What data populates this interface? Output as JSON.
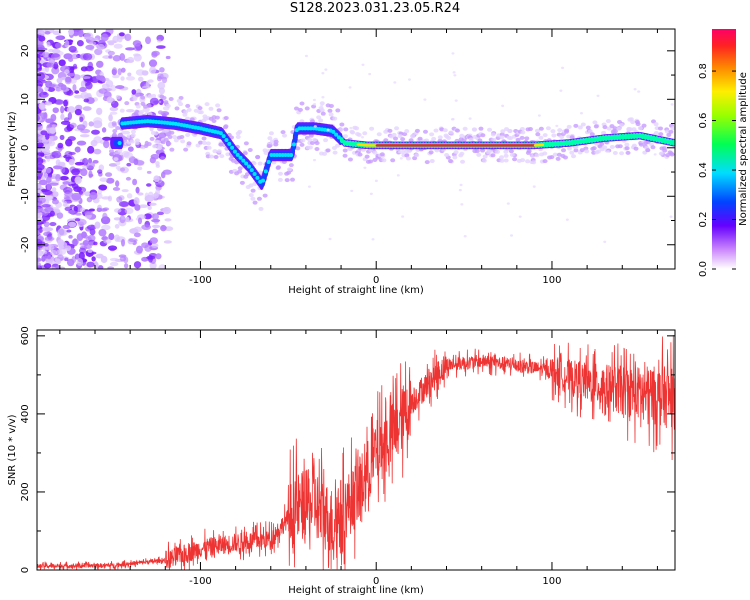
{
  "title": "S128.2023.031.23.05.R24",
  "chart_data": [
    {
      "type": "heatmap",
      "xlabel": "Height of straight line (km)",
      "ylabel": "Frequency (Hz)",
      "xlim": [
        -193,
        170
      ],
      "ylim": [
        -25,
        24.5
      ],
      "xticks": [
        -100,
        0,
        100
      ],
      "yticks": [
        -20,
        -10,
        0,
        10,
        20
      ],
      "colorbar": {
        "label": "Normalized spectral amplitude",
        "range": [
          0.0,
          0.97
        ],
        "ticks": [
          0.0,
          0.2,
          0.4,
          0.6,
          0.8
        ]
      },
      "ridge": [
        {
          "x": -145,
          "y": 5.0
        },
        {
          "x": -130,
          "y": 5.5
        },
        {
          "x": -115,
          "y": 5.0
        },
        {
          "x": -100,
          "y": 4.0
        },
        {
          "x": -88,
          "y": 3.0
        },
        {
          "x": -80,
          "y": -1.0
        },
        {
          "x": -72,
          "y": -4.0
        },
        {
          "x": -65,
          "y": -7.5
        },
        {
          "x": -60,
          "y": -1.5
        },
        {
          "x": -55,
          "y": -1.5
        },
        {
          "x": -48,
          "y": -1.5
        },
        {
          "x": -45,
          "y": 4.0
        },
        {
          "x": -35,
          "y": 4.0
        },
        {
          "x": -25,
          "y": 3.5
        },
        {
          "x": -18,
          "y": 1.0
        },
        {
          "x": -5,
          "y": 0.5
        },
        {
          "x": 10,
          "y": 0.5
        },
        {
          "x": 50,
          "y": 0.5
        },
        {
          "x": 90,
          "y": 0.5
        },
        {
          "x": 110,
          "y": 1.0
        },
        {
          "x": 130,
          "y": 2.0
        },
        {
          "x": 150,
          "y": 2.5
        },
        {
          "x": 170,
          "y": 1.0
        }
      ]
    },
    {
      "type": "line",
      "xlabel": "Height of straight line (km)",
      "ylabel": "SNR (10 * v/v)",
      "xlim": [
        -193,
        170
      ],
      "ylim": [
        0,
        615
      ],
      "xticks": [
        -100,
        0,
        100
      ],
      "yticks": [
        0,
        200,
        400,
        600
      ],
      "series_color": "#ee3333",
      "envelope": [
        {
          "x": -193,
          "y": 10
        },
        {
          "x": -150,
          "y": 12
        },
        {
          "x": -120,
          "y": 25
        },
        {
          "x": -100,
          "y": 55
        },
        {
          "x": -80,
          "y": 70
        },
        {
          "x": -60,
          "y": 80
        },
        {
          "x": -45,
          "y": 160
        },
        {
          "x": -35,
          "y": 170
        },
        {
          "x": -25,
          "y": 120
        },
        {
          "x": -10,
          "y": 200
        },
        {
          "x": 0,
          "y": 300
        },
        {
          "x": 10,
          "y": 350
        },
        {
          "x": 20,
          "y": 430
        },
        {
          "x": 30,
          "y": 480
        },
        {
          "x": 40,
          "y": 525
        },
        {
          "x": 60,
          "y": 535
        },
        {
          "x": 80,
          "y": 525
        },
        {
          "x": 100,
          "y": 510
        },
        {
          "x": 120,
          "y": 480
        },
        {
          "x": 140,
          "y": 460
        },
        {
          "x": 170,
          "y": 440
        }
      ]
    }
  ]
}
